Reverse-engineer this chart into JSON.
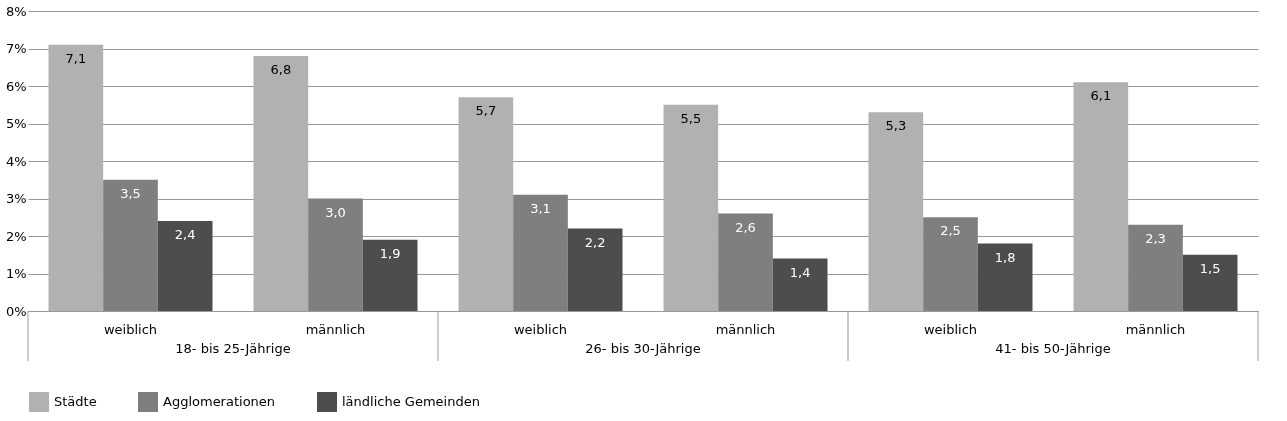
{
  "chart_data": {
    "type": "bar",
    "categories": [
      "weiblich",
      "männlich",
      "weiblich",
      "männlich",
      "weiblich",
      "männlich"
    ],
    "series": [
      {
        "name": "Städte",
        "color": "#b1b1b1",
        "values": [
          7.1,
          6.8,
          5.7,
          5.5,
          5.3,
          6.1
        ],
        "value_labels": [
          "7,1",
          "6,8",
          "5,7",
          "5,5",
          "5,3",
          "6,1"
        ]
      },
      {
        "name": "Agglomerationen",
        "color": "#7f7f7f",
        "values": [
          3.5,
          3.0,
          3.1,
          2.6,
          2.5,
          2.3
        ],
        "value_labels": [
          "3,5",
          "3,0",
          "3,1",
          "2,6",
          "2,5",
          "2,3"
        ]
      },
      {
        "name": "ländliche Gemeinden",
        "color": "#4d4d4d",
        "values": [
          2.4,
          1.9,
          2.2,
          1.4,
          1.8,
          1.5
        ],
        "value_labels": [
          "2,4",
          "1,9",
          "2,2",
          "1,4",
          "1,8",
          "1,5"
        ]
      }
    ],
    "annotations": [
      "18- bis 25-Jährige",
      "26- bis 30-Jährige",
      "41- bis 50-Jährige"
    ],
    "ylim": [
      0,
      8
    ],
    "yticks": [
      {
        "value": 0,
        "label": "0%"
      },
      {
        "value": 1,
        "label": "1%"
      },
      {
        "value": 2,
        "label": "2%"
      },
      {
        "value": 3,
        "label": "3%"
      },
      {
        "value": 4,
        "label": "4%"
      },
      {
        "value": 5,
        "label": "5%"
      },
      {
        "value": 6,
        "label": "6%"
      },
      {
        "value": 7,
        "label": "7%"
      },
      {
        "value": 8,
        "label": "8%"
      }
    ],
    "grid": "y",
    "legend": "bottom left"
  }
}
